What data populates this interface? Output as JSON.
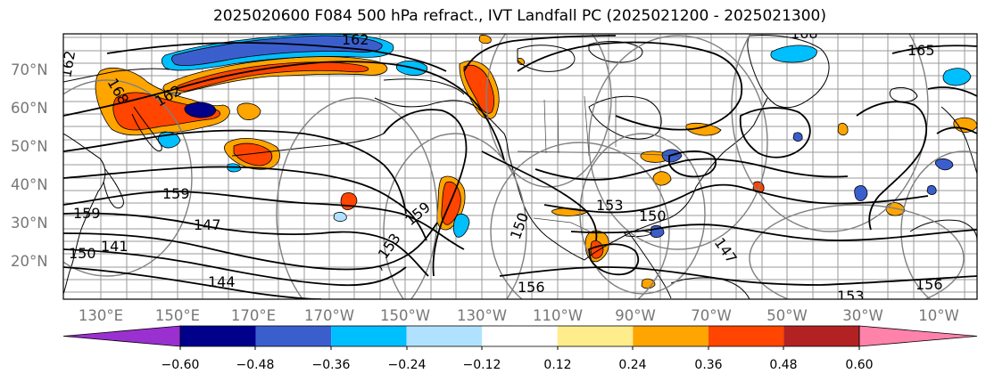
{
  "title": "2025020600 F084 500 hPa refract., IVT Landfall PC (2025021200 - 2025021300)",
  "latitude_labels": [
    "70°N",
    "60°N",
    "50°N",
    "40°N",
    "30°N",
    "20°N"
  ],
  "longitude_labels": [
    "130°E",
    "150°E",
    "170°E",
    "170°W",
    "150°W",
    "130°W",
    "110°W",
    "90°W",
    "70°W",
    "50°W",
    "30°W",
    "10°W"
  ],
  "contour_labels": [
    "159",
    "147",
    "141",
    "144",
    "150",
    "153",
    "159",
    "156",
    "150",
    "153",
    "150",
    "147",
    "156",
    "153",
    "159",
    "165",
    "168",
    "168",
    "162",
    "162",
    "162"
  ],
  "colorbar": {
    "ticks": [
      "−0.60",
      "−0.48",
      "−0.36",
      "−0.24",
      "−0.12",
      "0.12",
      "0.24",
      "0.36",
      "0.48",
      "0.60"
    ],
    "colors": [
      "#9b30d0",
      "#00008b",
      "#3a5fcd",
      "#00bfff",
      "#b0e2ff",
      "#ffffff",
      "#ffec8b",
      "#ffa500",
      "#ff4500",
      "#b22222",
      "#ff82ab"
    ]
  }
}
